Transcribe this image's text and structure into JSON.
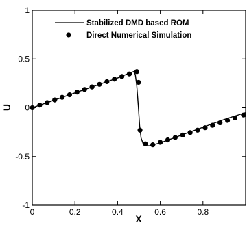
{
  "chart_data": {
    "type": "line",
    "xlabel": "X",
    "ylabel": "U",
    "xlim": [
      0,
      1
    ],
    "ylim": [
      -1,
      1
    ],
    "x_ticks": [
      0,
      0.2,
      0.4,
      0.6,
      0.8
    ],
    "x_tick_labels": [
      "0",
      "0.2",
      "0.4",
      "0.6",
      "0.8"
    ],
    "y_ticks": [
      -1,
      -0.5,
      0,
      0.5,
      1
    ],
    "y_tick_labels": [
      "-1",
      "-0.5",
      "0",
      "0.5",
      "1"
    ],
    "grid": false,
    "legend_position": "top-right",
    "series": [
      {
        "name": "Stabilized DMD based ROM",
        "style": "line",
        "color": "#000000",
        "x": [
          0.0,
          0.1,
          0.2,
          0.3,
          0.4,
          0.45,
          0.475,
          0.483,
          0.49,
          0.497,
          0.503,
          0.51,
          0.52,
          0.535,
          0.55,
          0.6,
          0.7,
          0.8,
          0.9,
          1.0
        ],
        "y": [
          0.0,
          0.076,
          0.152,
          0.228,
          0.305,
          0.35,
          0.37,
          0.34,
          0.22,
          0.02,
          -0.18,
          -0.31,
          -0.37,
          -0.39,
          -0.39,
          -0.36,
          -0.28,
          -0.2,
          -0.12,
          -0.05
        ]
      },
      {
        "name": "Direct Numerical Simulation",
        "style": "markers",
        "color": "#000000",
        "x": [
          0.0,
          0.035,
          0.07,
          0.105,
          0.14,
          0.175,
          0.21,
          0.245,
          0.28,
          0.315,
          0.35,
          0.385,
          0.42,
          0.455,
          0.49,
          0.498,
          0.505,
          0.53,
          0.565,
          0.6,
          0.635,
          0.67,
          0.705,
          0.74,
          0.775,
          0.81,
          0.845,
          0.88,
          0.915,
          0.95,
          0.99
        ],
        "y": [
          0.0,
          0.027,
          0.053,
          0.08,
          0.107,
          0.133,
          0.16,
          0.187,
          0.213,
          0.24,
          0.267,
          0.293,
          0.32,
          0.346,
          0.37,
          0.26,
          -0.23,
          -0.37,
          -0.38,
          -0.355,
          -0.33,
          -0.305,
          -0.28,
          -0.255,
          -0.23,
          -0.205,
          -0.18,
          -0.155,
          -0.13,
          -0.105,
          -0.075
        ]
      }
    ]
  }
}
